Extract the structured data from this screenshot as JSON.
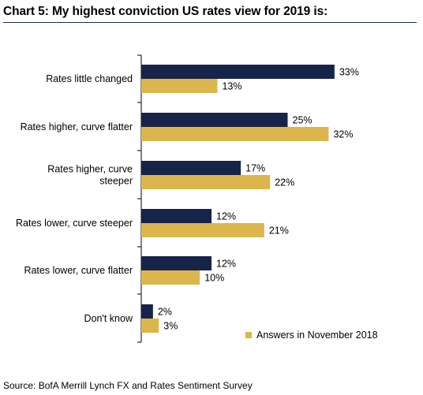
{
  "header": {
    "title": "Chart 5: My highest conviction US rates view for 2019 is:"
  },
  "footer": {
    "source": "Source: BofA Merrill Lynch FX and Rates Sentiment Survey"
  },
  "colors": {
    "series_current": "#16244a",
    "series_november": "#dcb64c",
    "axis": "#000000",
    "rule": "#1f2d52"
  },
  "chart_data": {
    "type": "bar",
    "orientation": "horizontal",
    "categories": [
      "Rates little changed",
      "Rates higher, curve flatter",
      "Rates higher, curve steeper",
      "Rates lower, curve steeper",
      "Rates lower, curve flatter",
      "Don't know"
    ],
    "series": [
      {
        "values": [
          33,
          25,
          17,
          12,
          12,
          2
        ],
        "labels": [
          "33%",
          "25%",
          "17%",
          "12%",
          "12%",
          "2%"
        ]
      },
      {
        "name": "Answers in November 2018",
        "values": [
          13,
          32,
          22,
          21,
          10,
          3
        ],
        "labels": [
          "13%",
          "32%",
          "22%",
          "21%",
          "10%",
          "3%"
        ]
      }
    ],
    "xlim": [
      0,
      40
    ],
    "grid": false,
    "legend_position": "bottom-right"
  }
}
